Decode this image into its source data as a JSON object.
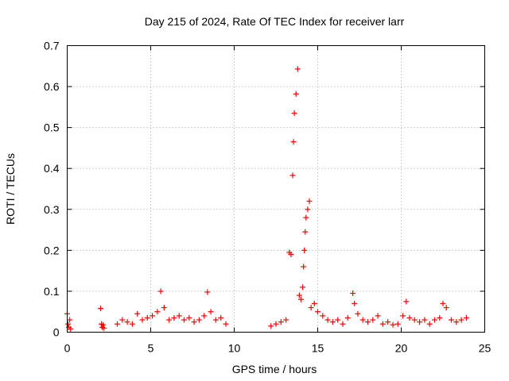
{
  "chart_data": {
    "type": "scatter",
    "title": "Day 215 of 2024, Rate Of TEC Index for receiver larr",
    "xlabel": "GPS time / hours",
    "ylabel": "ROTI / TECUs",
    "xlim": [
      0,
      25
    ],
    "ylim": [
      0,
      0.7
    ],
    "x_ticks": [
      0,
      5,
      10,
      15,
      20,
      25
    ],
    "y_ticks": [
      0,
      0.1,
      0.2,
      0.3,
      0.4,
      0.5,
      0.6,
      0.7
    ],
    "x_tick_labels": [
      "0",
      "5",
      "10",
      "15",
      "20",
      "25"
    ],
    "y_tick_labels": [
      "0",
      "0.1",
      "0.2",
      "0.3",
      "0.4",
      "0.5",
      "0.6",
      "0.7"
    ],
    "grid": true,
    "marker": "+",
    "marker_color": "#ff0000",
    "series": [
      {
        "name": "ROTI",
        "x": [
          0.0,
          0.05,
          0.1,
          0.15,
          0.2,
          2.0,
          2.05,
          2.1,
          2.15,
          2.2,
          3.0,
          3.3,
          3.6,
          3.9,
          4.2,
          4.5,
          4.8,
          5.1,
          5.4,
          5.6,
          5.8,
          6.1,
          6.4,
          6.7,
          7.0,
          7.3,
          7.6,
          7.9,
          8.2,
          8.4,
          8.6,
          8.9,
          9.2,
          9.5,
          12.2,
          12.5,
          12.8,
          13.1,
          13.3,
          13.4,
          13.5,
          13.55,
          13.6,
          13.7,
          13.8,
          13.9,
          14.0,
          14.1,
          14.15,
          14.2,
          14.25,
          14.3,
          14.4,
          14.5,
          14.6,
          14.8,
          15.0,
          15.3,
          15.6,
          15.9,
          16.2,
          16.5,
          16.8,
          17.1,
          17.2,
          17.4,
          17.7,
          18.0,
          18.3,
          18.6,
          18.9,
          19.2,
          19.5,
          19.8,
          20.1,
          20.3,
          20.5,
          20.8,
          21.1,
          21.4,
          21.7,
          22.0,
          22.3,
          22.5,
          22.7,
          23.0,
          23.3,
          23.6,
          23.9
        ],
        "y": [
          0.045,
          0.02,
          0.012,
          0.03,
          0.008,
          0.058,
          0.02,
          0.012,
          0.018,
          0.01,
          0.02,
          0.03,
          0.025,
          0.02,
          0.045,
          0.03,
          0.035,
          0.04,
          0.05,
          0.1,
          0.06,
          0.03,
          0.035,
          0.04,
          0.03,
          0.035,
          0.025,
          0.03,
          0.04,
          0.098,
          0.05,
          0.03,
          0.035,
          0.02,
          0.015,
          0.02,
          0.025,
          0.03,
          0.195,
          0.19,
          0.383,
          0.465,
          0.535,
          0.582,
          0.643,
          0.09,
          0.08,
          0.11,
          0.16,
          0.2,
          0.245,
          0.28,
          0.3,
          0.32,
          0.06,
          0.07,
          0.05,
          0.04,
          0.03,
          0.025,
          0.03,
          0.02,
          0.035,
          0.095,
          0.07,
          0.045,
          0.03,
          0.025,
          0.03,
          0.04,
          0.02,
          0.025,
          0.018,
          0.02,
          0.04,
          0.075,
          0.035,
          0.03,
          0.025,
          0.03,
          0.02,
          0.03,
          0.035,
          0.07,
          0.06,
          0.03,
          0.025,
          0.03,
          0.035
        ]
      }
    ]
  }
}
